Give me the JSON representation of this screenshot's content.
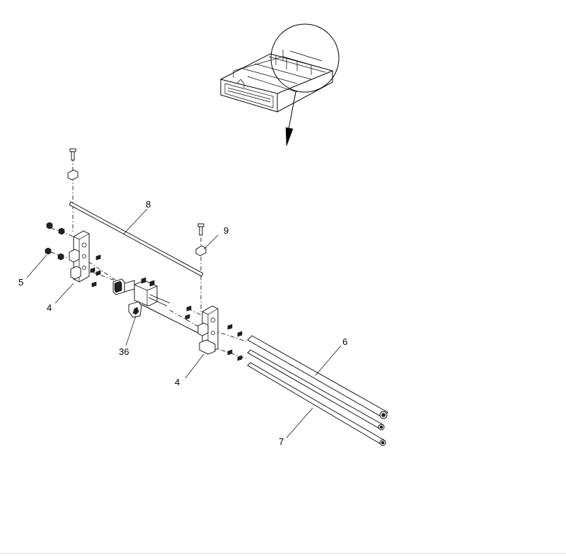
{
  "callouts": {
    "c4_left": "4",
    "c5": "5",
    "c8": "8",
    "c9": "9",
    "c36": "36",
    "c4_right": "4",
    "c6": "6",
    "c7": "7"
  }
}
